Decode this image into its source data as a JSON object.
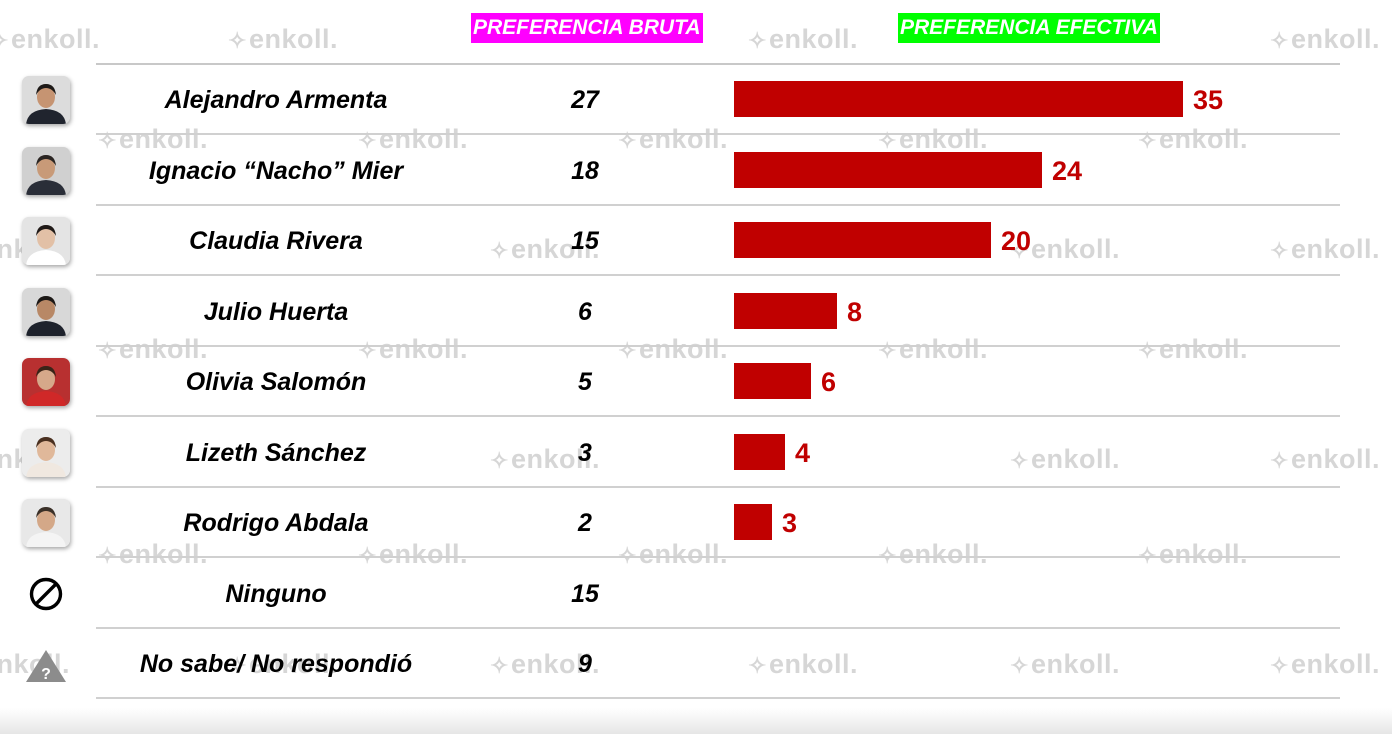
{
  "headers": {
    "bruta": "PREFERENCIA BRUTA",
    "efectiva": "PREFERENCIA EFECTIVA"
  },
  "watermark": "enkoll.",
  "colors": {
    "bar": "#c00000",
    "header_bruta_bg": "#ff00ff",
    "header_efectiva_bg": "#00ff00"
  },
  "chart_data": {
    "type": "bar",
    "orientation": "horizontal",
    "categories": [
      "Alejandro Armenta",
      "Ignacio “Nacho” Mier",
      "Claudia Rivera",
      "Julio Huerta",
      "Olivia Salomón",
      "Lizeth Sánchez",
      "Rodrigo Abdala",
      "Ninguno",
      "No sabe/ No respondió"
    ],
    "series": [
      {
        "name": "PREFERENCIA BRUTA",
        "values": [
          27,
          18,
          15,
          6,
          5,
          3,
          2,
          15,
          9
        ]
      },
      {
        "name": "PREFERENCIA EFECTIVA",
        "values": [
          35,
          24,
          20,
          8,
          6,
          4,
          3,
          null,
          null
        ]
      }
    ],
    "xlim": [
      0,
      35
    ],
    "grid": false,
    "data_labels": true
  },
  "rows": [
    {
      "icon": "avatar-armenta-icon",
      "skin": "#c69472",
      "hair": "#1e1a18",
      "suit": "#20242e",
      "bg": "#dcdcdc"
    },
    {
      "icon": "avatar-mier-icon",
      "skin": "#c89a78",
      "hair": "#2a2522",
      "suit": "#2a2e38",
      "bg": "#d0d0d0"
    },
    {
      "icon": "avatar-rivera-icon",
      "skin": "#e2c0a6",
      "hair": "#201a18",
      "suit": "#ffffff",
      "bg": "#e4e4e4"
    },
    {
      "icon": "avatar-huerta-icon",
      "skin": "#b88866",
      "hair": "#1c1816",
      "suit": "#1e222c",
      "bg": "#d8d8d8"
    },
    {
      "icon": "avatar-salomon-icon",
      "skin": "#d6a88a",
      "hair": "#3a2418",
      "suit": "#d02828",
      "bg": "#b83030"
    },
    {
      "icon": "avatar-sanchez-icon",
      "skin": "#e0b89a",
      "hair": "#4a3020",
      "suit": "#f0e8e0",
      "bg": "#ececec"
    },
    {
      "icon": "avatar-abdala-icon",
      "skin": "#d4a888",
      "hair": "#3a3028",
      "suit": "#f4f4f4",
      "bg": "#e8e8e8"
    },
    {
      "icon": "prohibited-icon"
    },
    {
      "icon": "question-triangle-icon"
    }
  ]
}
